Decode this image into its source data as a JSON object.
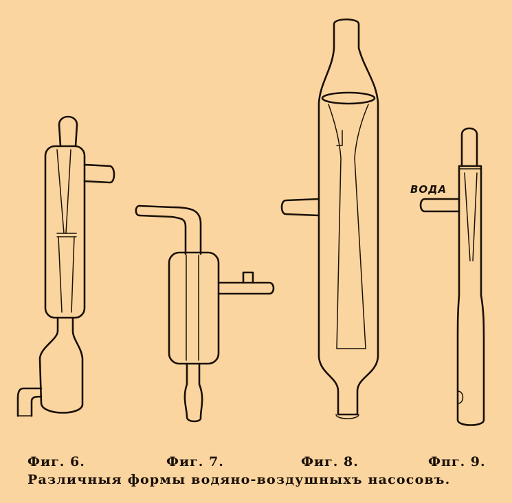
{
  "figures": [
    {
      "label": "Фиг. 6."
    },
    {
      "label": "Фиг. 7."
    },
    {
      "label": "Фиг. 8."
    },
    {
      "label": "Фпг. 9."
    }
  ],
  "fig9_water_label": "ВОДА",
  "caption": "Различныя формы водяно-воздушныхъ насосовъ.",
  "colors": {
    "paper": "#fad59f",
    "ink": "#1a1008"
  }
}
